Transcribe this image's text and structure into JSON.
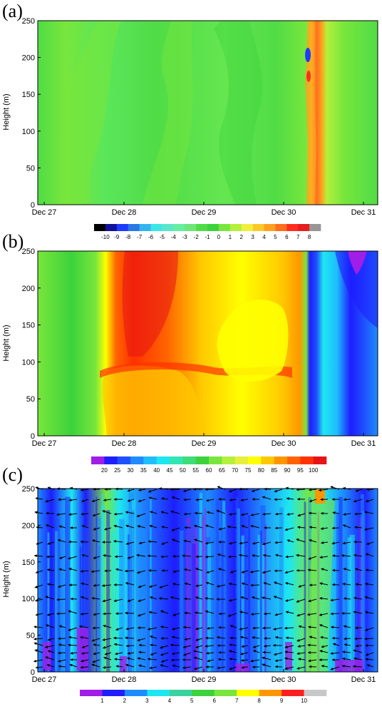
{
  "panels": [
    {
      "label": "(a)",
      "ylabel": "Height (m)",
      "y_ticks": [
        0,
        50,
        100,
        150,
        200,
        250
      ],
      "x_ticks": [
        "Dec 27",
        "Dec 28",
        "Dec 29",
        "Dec 30",
        "Dec 31"
      ],
      "colorbar": {
        "tick_labels": [
          "-10",
          "-9",
          "-8",
          "-7",
          "-6",
          "-5",
          "-4",
          "-3",
          "-2",
          "-1",
          "0",
          "1",
          "2",
          "3",
          "4",
          "5",
          "6",
          "7",
          "8"
        ],
        "colors": [
          "#000000",
          "#11119a",
          "#1e3cff",
          "#2a78e6",
          "#33b4f0",
          "#3ce6e6",
          "#5ae6c8",
          "#64f0a0",
          "#6ee678",
          "#50dc46",
          "#3cd23c",
          "#78e63c",
          "#b4f03c",
          "#f0f03c",
          "#ffc828",
          "#ffa01e",
          "#ff6e1e",
          "#ff2d1e",
          "#e61e1e",
          "#969696"
        ]
      }
    },
    {
      "label": "(b)",
      "ylabel": "Height (m)",
      "y_ticks": [
        0,
        50,
        100,
        150,
        200,
        250
      ],
      "x_ticks": [
        "Dec 27",
        "Dec 28",
        "Dec 29",
        "Dec 30",
        "Dec 31"
      ],
      "colorbar": {
        "tick_labels": [
          "20",
          "25",
          "30",
          "35",
          "40",
          "45",
          "50",
          "55",
          "60",
          "65",
          "70",
          "75",
          "80",
          "85",
          "90",
          "95",
          "100"
        ],
        "colors": [
          "#a01ee6",
          "#1e1eff",
          "#1e50ff",
          "#1e8cff",
          "#1ebeff",
          "#1ee6f0",
          "#32e6b4",
          "#3cdc78",
          "#3cd23c",
          "#78e63c",
          "#b4f03c",
          "#e6f03c",
          "#ffff00",
          "#ffc800",
          "#ff9600",
          "#ff6400",
          "#ff3200",
          "#e61414"
        ]
      }
    },
    {
      "label": "(c)",
      "ylabel": "Height (m)",
      "y_ticks": [
        0,
        50,
        100,
        150,
        200,
        250
      ],
      "x_ticks": [
        "Dec 27",
        "Dec 28",
        "Dec 29",
        "Dec 30",
        "Dec 31"
      ],
      "colorbar": {
        "tick_labels": [
          "1",
          "2",
          "3",
          "4",
          "5",
          "6",
          "7",
          "8",
          "9",
          "10"
        ],
        "colors": [
          "#a01ee6",
          "#1e1eff",
          "#1e8cff",
          "#1ee6f0",
          "#3cd2a0",
          "#3cd23c",
          "#78e63c",
          "#ffff00",
          "#ff9600",
          "#ff1e1e",
          "#c8c8c8"
        ]
      }
    }
  ],
  "chart_data": [
    {
      "type": "heatmap",
      "title": "(a)",
      "xlabel": "",
      "ylabel": "Height (m)",
      "x_range": [
        "Dec 27",
        "Dec 31"
      ],
      "ylim": [
        0,
        250
      ],
      "x": [
        "Dec 27",
        "Dec 28",
        "Dec 29",
        "Dec 30",
        "Dec 31"
      ],
      "y_ticks": [
        0,
        50,
        100,
        150,
        200,
        250
      ],
      "colorbar_levels": [
        -10,
        -9,
        -8,
        -7,
        -6,
        -5,
        -4,
        -3,
        -2,
        -1,
        0,
        1,
        2,
        3,
        4,
        5,
        6,
        7,
        8
      ],
      "features": [
        {
          "x_day": [
            27.0,
            30.2
          ],
          "y": [
            0,
            250
          ],
          "value_range": [
            -2,
            2
          ]
        },
        {
          "x_day": [
            30.25,
            30.45
          ],
          "y": [
            0,
            250
          ],
          "value_range": [
            3,
            8
          ]
        },
        {
          "x_day": [
            30.3,
            30.35
          ],
          "y": [
            195,
            210
          ],
          "value": -6
        },
        {
          "x_day": [
            30.3,
            30.35
          ],
          "y": [
            160,
            185
          ],
          "value": 7
        }
      ]
    },
    {
      "type": "heatmap",
      "title": "(b)",
      "xlabel": "",
      "ylabel": "Height (m)",
      "x_range": [
        "Dec 27",
        "Dec 31"
      ],
      "ylim": [
        0,
        250
      ],
      "x": [
        "Dec 27",
        "Dec 28",
        "Dec 29",
        "Dec 30",
        "Dec 31"
      ],
      "y_ticks": [
        0,
        50,
        100,
        150,
        200,
        250
      ],
      "colorbar_levels": [
        20,
        25,
        30,
        35,
        40,
        45,
        50,
        55,
        60,
        65,
        70,
        75,
        80,
        85,
        90,
        95,
        100
      ],
      "features": [
        {
          "x_day": [
            27.0,
            27.7
          ],
          "y": [
            0,
            250
          ],
          "value_range": [
            55,
            70
          ]
        },
        {
          "x_day": [
            27.8,
            28.5
          ],
          "y": [
            50,
            250
          ],
          "value_range": [
            90,
            100
          ]
        },
        {
          "x_day": [
            28.3,
            30.2
          ],
          "y": [
            0,
            250
          ],
          "value_range": [
            75,
            90
          ]
        },
        {
          "x_day": [
            30.25,
            30.35
          ],
          "y": [
            0,
            250
          ],
          "value_range": [
            20,
            30
          ]
        },
        {
          "x_day": [
            30.4,
            31.1
          ],
          "y": [
            0,
            250
          ],
          "value_range": [
            20,
            45
          ]
        }
      ]
    },
    {
      "type": "heatmap",
      "title": "(c)",
      "xlabel": "",
      "ylabel": "Height (m)",
      "x_range": [
        "Dec 27",
        "Dec 31"
      ],
      "ylim": [
        0,
        250
      ],
      "x": [
        "Dec 27",
        "Dec 28",
        "Dec 29",
        "Dec 30",
        "Dec 31"
      ],
      "y_ticks": [
        0,
        50,
        100,
        150,
        200,
        250
      ],
      "colorbar_levels": [
        1,
        2,
        3,
        4,
        5,
        6,
        7,
        8,
        9,
        10
      ],
      "overlay": "wind vectors",
      "features": [
        {
          "x_day": [
            27.0,
            31.1
          ],
          "y": [
            0,
            250
          ],
          "value_range": [
            1,
            4
          ]
        },
        {
          "x_day": [
            27.75,
            28.0
          ],
          "y": [
            100,
            250
          ],
          "value_range": [
            5,
            7
          ]
        },
        {
          "x_day": [
            30.3,
            30.6
          ],
          "y": [
            50,
            250
          ],
          "value_range": [
            5,
            8
          ]
        },
        {
          "x_day": [
            30.4,
            30.5
          ],
          "y": [
            235,
            250
          ],
          "value_range": [
            8,
            9
          ]
        }
      ]
    }
  ]
}
